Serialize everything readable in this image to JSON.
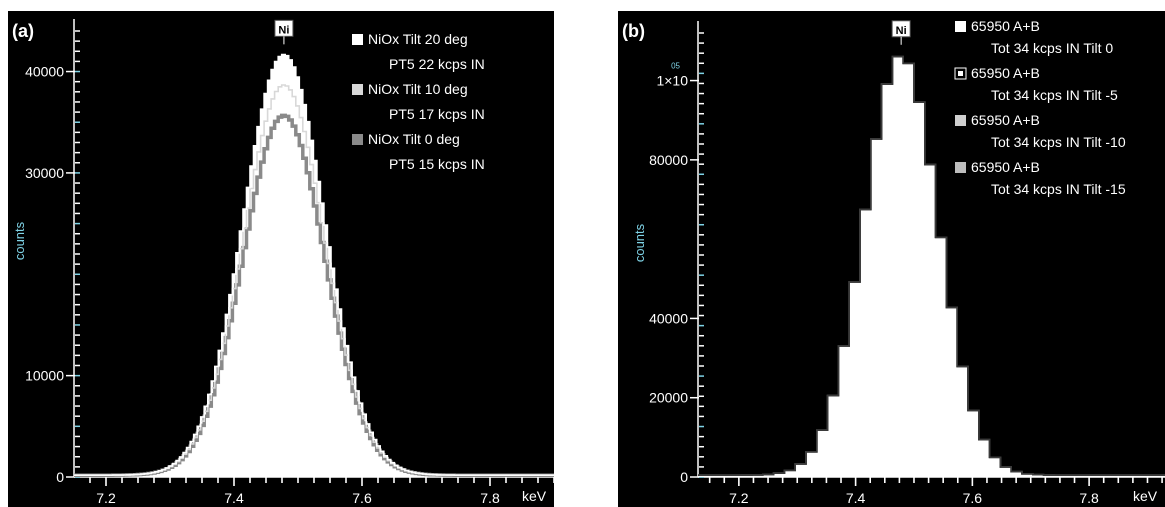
{
  "chart_data": [
    {
      "type": "line",
      "panel_label": "(a)",
      "ylabel": "counts",
      "xunit": "keV",
      "xlim": [
        7.15,
        7.9
      ],
      "ylim": [
        0,
        44000
      ],
      "x_ticks": [
        "7.2",
        "7.4",
        "7.6",
        "7.8"
      ],
      "y_ticks": [
        "0",
        "10000",
        "30000",
        "40000"
      ],
      "y_tick_values": [
        0,
        10000,
        30000,
        40000
      ],
      "peak": {
        "label": "Ni",
        "x": 7.478
      },
      "legend_position": "top-right",
      "series": [
        {
          "name": "NiOx Tilt 20 deg",
          "subtitle": "PT5 22 kcps IN",
          "mu": 7.478,
          "sigma": 0.064,
          "peak": 41500,
          "color": "#ffffff"
        },
        {
          "name": "NiOx Tilt 10 deg",
          "subtitle": "PT5 17 kcps IN",
          "mu": 7.478,
          "sigma": 0.064,
          "peak": 38500,
          "color": "#d8d8d8"
        },
        {
          "name": "NiOx Tilt 0 deg",
          "subtitle": "PT5 15 kcps IN",
          "mu": 7.478,
          "sigma": 0.064,
          "peak": 35500,
          "color": "#8a8a8a"
        }
      ]
    },
    {
      "type": "line",
      "panel_label": "(b)",
      "ylabel": "counts",
      "xunit": "keV",
      "xlim": [
        7.13,
        7.93
      ],
      "ylim": [
        0,
        112000
      ],
      "x_ticks": [
        "7.2",
        "7.4",
        "7.6",
        "7.8"
      ],
      "y_ticks": [
        "0",
        "20000",
        "40000",
        "80000"
      ],
      "y_tick_values": [
        0,
        20000,
        40000,
        80000
      ],
      "y_top_tick": {
        "mantissa": "1×10",
        "exponent": "05",
        "value": 100000
      },
      "peak": {
        "label": "Ni",
        "x": 7.478
      },
      "legend_position": "top-right",
      "series": [
        {
          "name": "65950 A+B",
          "subtitle": "Tot 34 kcps IN Tilt 0",
          "mu": 7.478,
          "sigma": 0.064,
          "peak": 106000,
          "color": "#ffffff"
        },
        {
          "name": "65950 A+B",
          "subtitle": "Tot 34 kcps IN Tilt -5",
          "mu": 7.478,
          "sigma": 0.064,
          "peak": 106000,
          "color": "#e6e6e6"
        },
        {
          "name": "65950 A+B",
          "subtitle": "Tot 34 kcps IN Tilt -10",
          "mu": 7.478,
          "sigma": 0.064,
          "peak": 106000,
          "color": "#cfcfcf"
        },
        {
          "name": "65950 A+B",
          "subtitle": "Tot 34 kcps IN Tilt -15",
          "mu": 7.478,
          "sigma": 0.064,
          "peak": 106000,
          "color": "#bdbdbd"
        }
      ]
    }
  ]
}
